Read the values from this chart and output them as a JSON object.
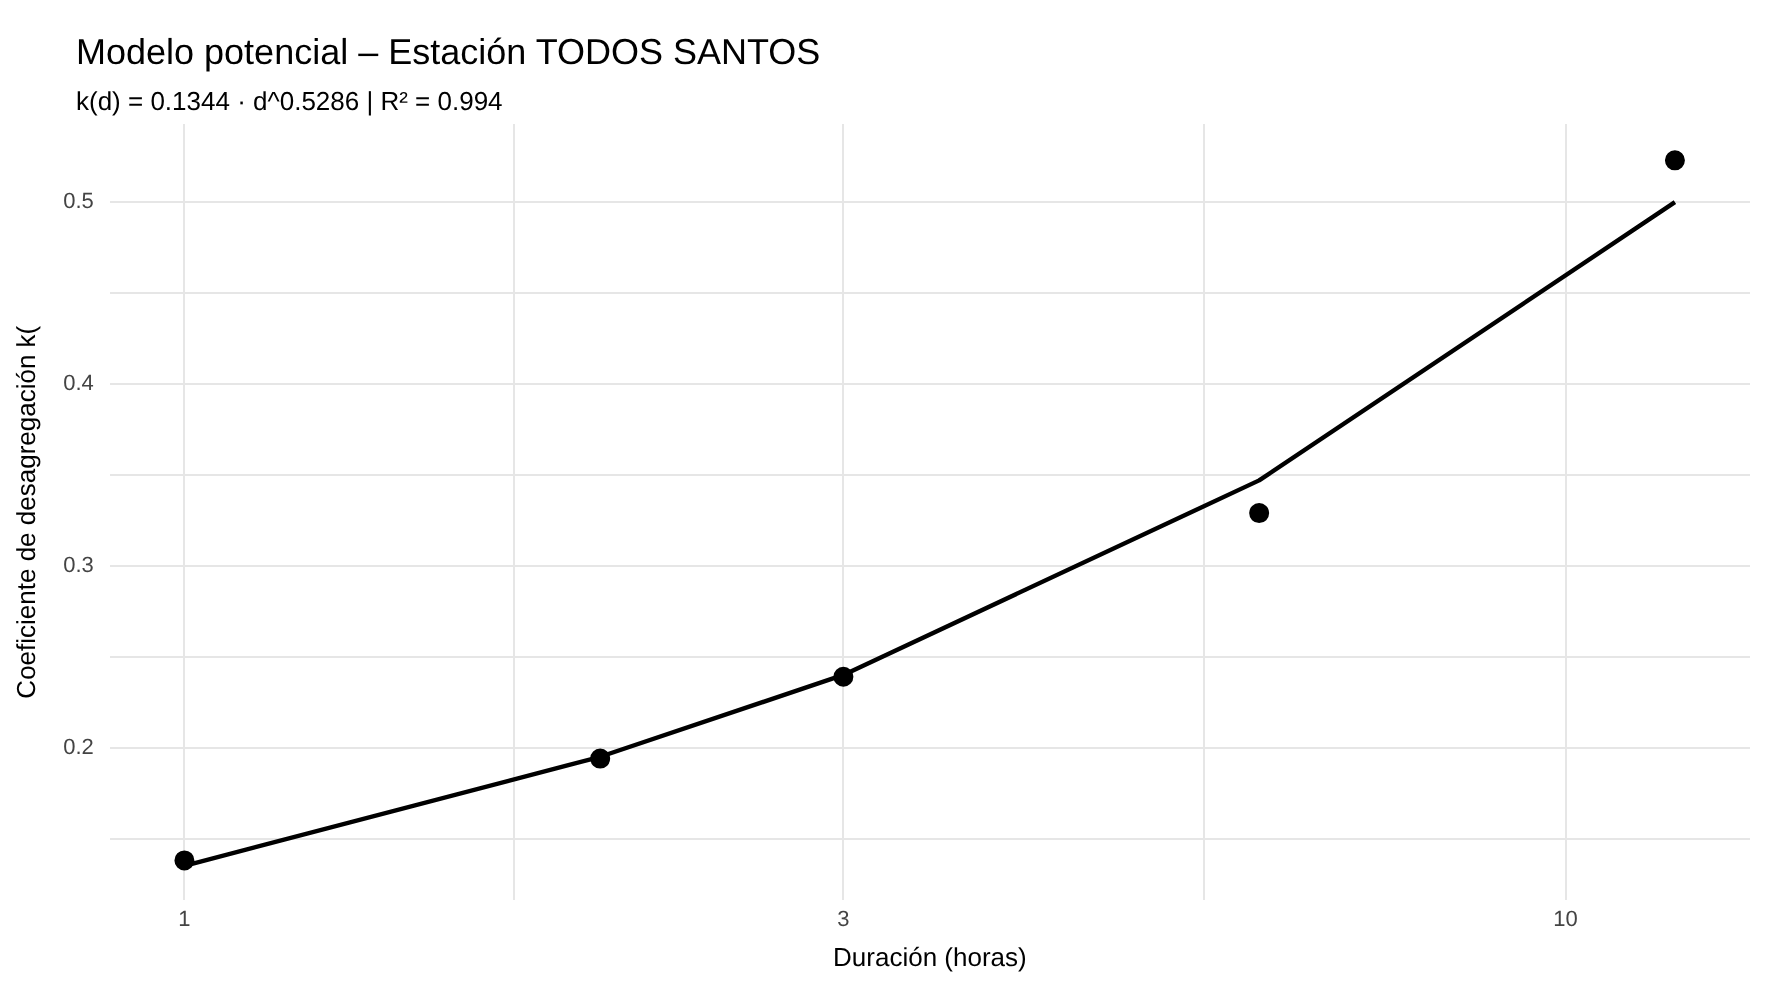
{
  "chart_data": {
    "type": "scatter",
    "title": "Modelo potencial – Estación TODOS SANTOS",
    "subtitle": "k(d) = 0.1344 · d^0.5286 | R² = 0.994",
    "xlabel": "Duración (horas)",
    "ylabel": "Coeficiente de desagregación k(",
    "log": "x",
    "series": [
      {
        "color": "#000000",
        "marker": "circle",
        "x": [
          1,
          2,
          3,
          6,
          12
        ],
        "values": [
          0.138,
          0.194,
          0.239,
          0.329,
          0.523
        ]
      },
      {
        "type": "line",
        "color": "#000000",
        "marker": "none",
        "line_style": "solid",
        "x": [
          1,
          2,
          3,
          6,
          12
        ],
        "values": [
          0.135,
          0.195,
          0.24,
          0.347,
          0.5
        ]
      }
    ],
    "xlim": [
      0.883,
      13.6
    ],
    "xticks": [
      1,
      {
        "value": 1.732,
        "label": null
      },
      3,
      {
        "value": 5.477,
        "label": null
      },
      10
    ],
    "ylim": [
      0.116,
      0.543
    ],
    "yticks": [
      {
        "value": 0.15,
        "label": null
      },
      0.2,
      {
        "value": 0.25,
        "label": null
      },
      0.3,
      {
        "value": 0.35,
        "label": null
      },
      0.4,
      {
        "value": 0.45,
        "label": null
      },
      0.5
    ],
    "grid": true,
    "legend": false
  }
}
